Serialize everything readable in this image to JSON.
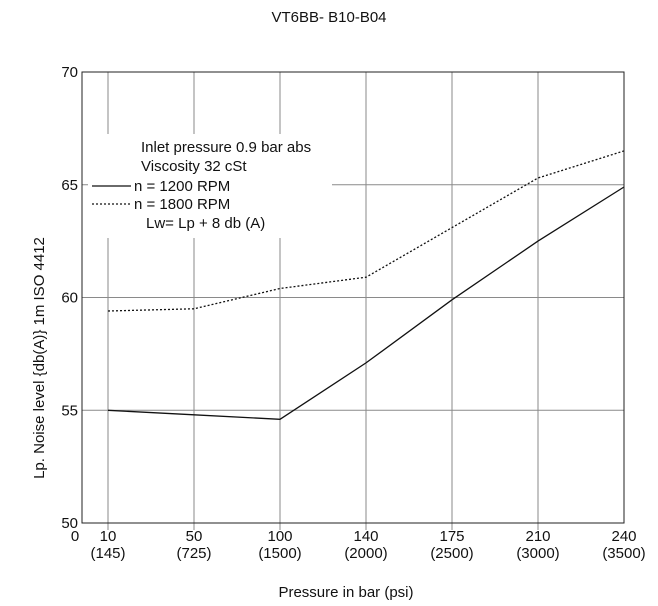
{
  "chart_data": {
    "type": "line",
    "title": "VT6BB- B10-B04",
    "xlabel": "Pressure in bar (psi)",
    "ylabel": "Lp. Noise level {db(A)} 1m ISO 4412",
    "origin_label": "0",
    "x_ticks": [
      {
        "value": 10,
        "bar": "10",
        "psi": "(145)"
      },
      {
        "value": 50,
        "bar": "50",
        "psi": "(725)"
      },
      {
        "value": 100,
        "bar": "100",
        "psi": "(1500)"
      },
      {
        "value": 140,
        "bar": "140",
        "psi": "(2000)"
      },
      {
        "value": 175,
        "bar": "175",
        "psi": "(2500)"
      },
      {
        "value": 210,
        "bar": "210",
        "psi": "(3000)"
      },
      {
        "value": 240,
        "bar": "240",
        "psi": "(3500)"
      }
    ],
    "y_ticks": [
      50,
      55,
      60,
      65,
      70
    ],
    "xlim": [
      0,
      240
    ],
    "ylim": [
      50,
      70
    ],
    "grid": true,
    "legend": {
      "lines": [
        "Inlet pressure    0.9 bar abs",
        "Viscosity   32 cSt"
      ],
      "note": "Lw= Lp + 8 db (A)",
      "placement": "top-left"
    },
    "series": [
      {
        "name": "n = 1200 RPM",
        "style": "solid",
        "x": [
          10,
          50,
          100,
          140,
          175,
          210,
          240
        ],
        "y": [
          55.0,
          54.8,
          54.6,
          57.1,
          59.9,
          62.5,
          64.9
        ]
      },
      {
        "name": "n = 1800 RPM",
        "style": "dotted",
        "x": [
          10,
          50,
          100,
          140,
          175,
          210,
          240
        ],
        "y": [
          59.4,
          59.5,
          60.4,
          60.9,
          63.1,
          65.3,
          66.5
        ]
      }
    ]
  }
}
